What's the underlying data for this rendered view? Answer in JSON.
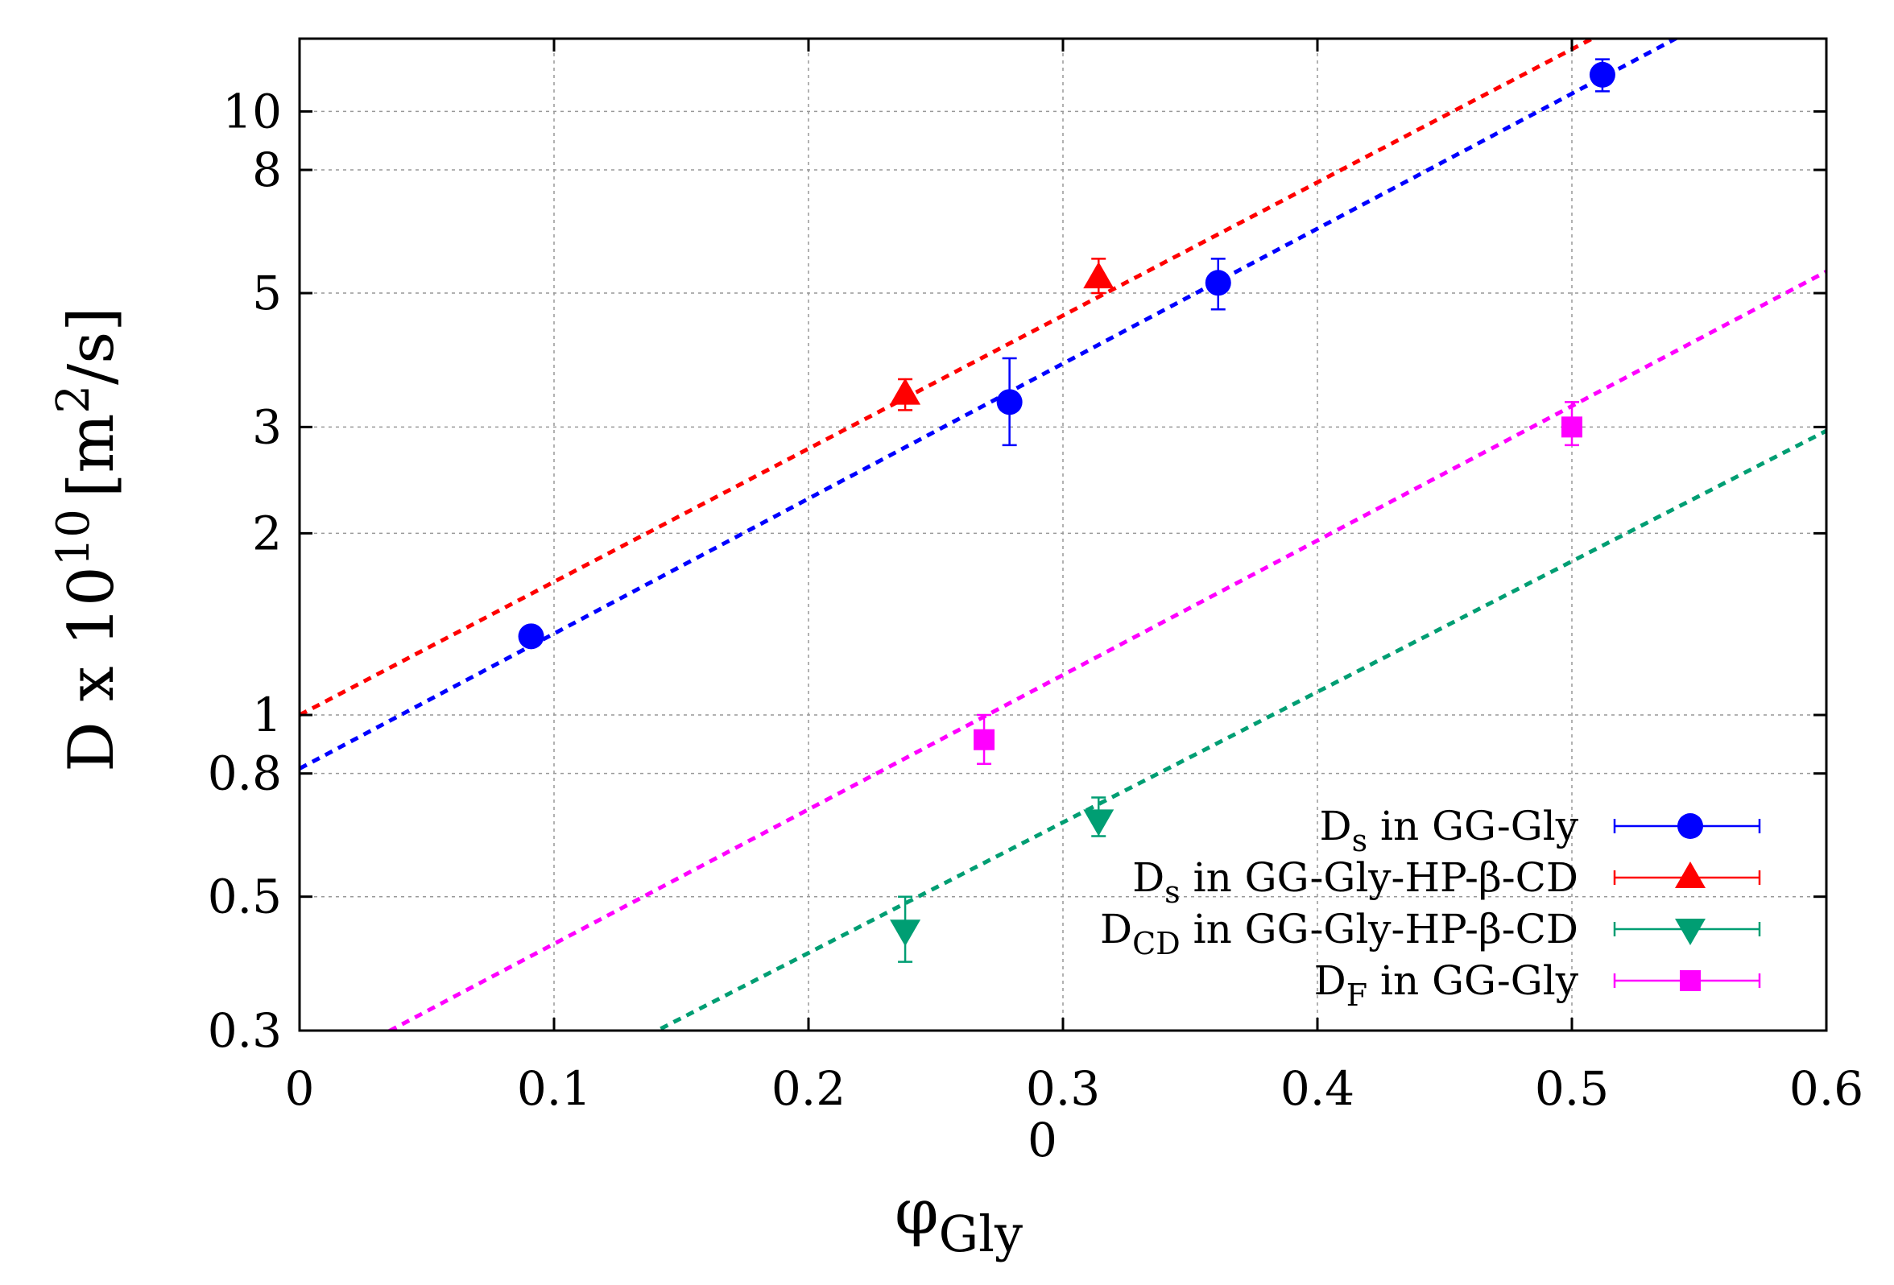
{
  "chart_data": {
    "type": "scatter",
    "x_axis": {
      "label": "φ",
      "label_subscript": "Gly",
      "label_superscript": "0",
      "range": [
        0,
        0.6
      ],
      "ticks": [
        0,
        0.1,
        0.2,
        0.3,
        0.4,
        0.5,
        0.6
      ],
      "tick_labels": [
        "0",
        "0.1",
        "0.2",
        "0.3",
        "0.4",
        "0.5",
        "0.6"
      ]
    },
    "y_axis": {
      "scale": "log",
      "label": "D x 10",
      "label_superscript": "10",
      "label_unit": "[m",
      "label_unit_superscript": "2",
      "label_unit_tail": "/s]",
      "range": [
        0.3,
        13.2
      ],
      "ticks": [
        0.3,
        0.5,
        0.8,
        1,
        2,
        3,
        5,
        8,
        10
      ],
      "tick_labels": [
        "0.3",
        "0.5",
        "0.8",
        "1",
        "2",
        "3",
        "5",
        "8",
        "10"
      ]
    },
    "grid": true,
    "legend_position": "bottom-right",
    "series": [
      {
        "name": "Ds in GG-Gly",
        "legend_main": "D",
        "legend_sub": "s",
        "legend_rest": " in GG-Gly",
        "color": "#0000ff",
        "marker": "circle",
        "points": [
          {
            "x": 0.091,
            "y": 1.35,
            "err_low": 1.35,
            "err_high": 1.35
          },
          {
            "x": 0.279,
            "y": 3.3,
            "err_low": 2.8,
            "err_high": 3.9
          },
          {
            "x": 0.361,
            "y": 5.2,
            "err_low": 4.7,
            "err_high": 5.7
          },
          {
            "x": 0.512,
            "y": 11.5,
            "err_low": 10.8,
            "err_high": 12.2
          }
        ],
        "fit": {
          "intercept": 0.815,
          "slope_per_unit_x": 5.15
        }
      },
      {
        "name": "Ds in GG-Gly-HP-β-CD",
        "legend_main": "D",
        "legend_sub": "s",
        "legend_rest": " in GG-Gly-HP-β-CD",
        "color": "#ff0000",
        "marker": "triangle-up",
        "points": [
          {
            "x": 0.238,
            "y": 3.4,
            "err_low": 3.2,
            "err_high": 3.6
          },
          {
            "x": 0.314,
            "y": 5.3,
            "err_low": 5.0,
            "err_high": 5.7
          }
        ],
        "fit": {
          "intercept": 1.0,
          "slope_per_unit_x": 5.08
        }
      },
      {
        "name": "DCD in GG-Gly-HP-β-CD",
        "legend_main": "D",
        "legend_sub": "CD",
        "legend_rest": " in GG-Gly-HP-β-CD",
        "color": "#009e73",
        "marker": "triangle-down",
        "points": [
          {
            "x": 0.238,
            "y": 0.44,
            "err_low": 0.39,
            "err_high": 0.5
          },
          {
            "x": 0.314,
            "y": 0.67,
            "err_low": 0.63,
            "err_high": 0.73
          }
        ],
        "fit": {
          "intercept": 0.149,
          "slope_per_unit_x": 4.98
        }
      },
      {
        "name": "DF in GG-Gly",
        "legend_main": "D",
        "legend_sub": "F",
        "legend_rest": " in  GG-Gly",
        "color": "#ff00ff",
        "marker": "square",
        "points": [
          {
            "x": 0.269,
            "y": 0.91,
            "err_low": 0.83,
            "err_high": 1.0
          },
          {
            "x": 0.5,
            "y": 3.0,
            "err_low": 2.8,
            "err_high": 3.3
          }
        ],
        "fit": {
          "intercept": 0.25,
          "slope_per_unit_x": 5.13
        }
      }
    ]
  }
}
